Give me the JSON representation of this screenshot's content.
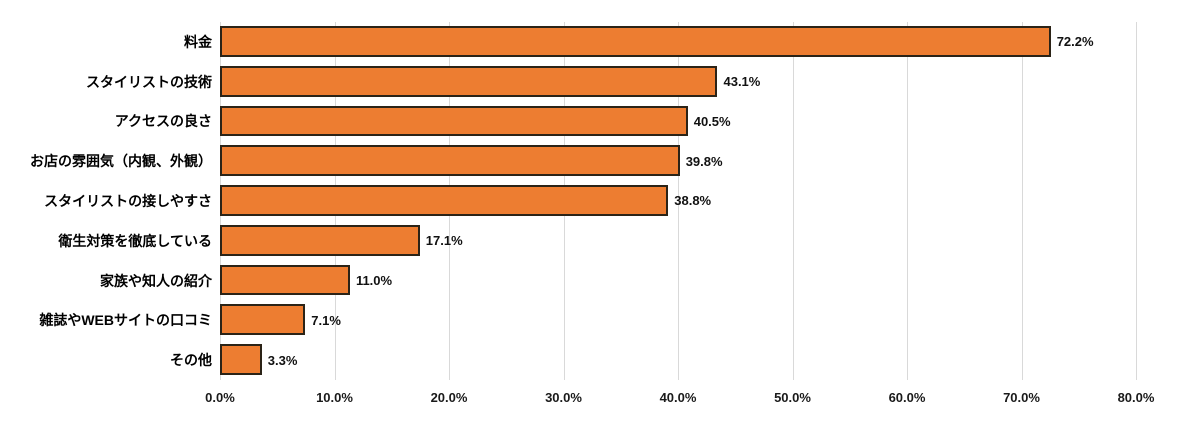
{
  "chart_data": {
    "type": "bar",
    "orientation": "horizontal",
    "title": "",
    "categories": [
      "料金",
      "スタイリストの技術",
      "アクセスの良さ",
      "お店の雰囲気（内観、外観）",
      "スタイリストの接しやすさ",
      "衛生対策を徹底している",
      "家族や知人の紹介",
      "雑誌やWEBサイトの口コミ",
      "その他"
    ],
    "values": [
      72.2,
      43.1,
      40.5,
      39.8,
      38.8,
      17.1,
      11.0,
      7.1,
      3.3
    ],
    "data_labels": [
      "72.2%",
      "43.1%",
      "40.5%",
      "39.8%",
      "38.8%",
      "17.1%",
      "11.0%",
      "7.1%",
      "3.3%"
    ],
    "x_tick_labels": [
      "0.0%",
      "10.0%",
      "20.0%",
      "30.0%",
      "40.0%",
      "50.0%",
      "60.0%",
      "70.0%",
      "80.0%"
    ],
    "x_tick_values": [
      0,
      10,
      20,
      30,
      40,
      50,
      60,
      70,
      80
    ],
    "xlim": [
      0,
      80
    ],
    "grid": true,
    "legend": false,
    "colors": {
      "bar_fill": "#ED7D31",
      "bar_border": "#2B2317",
      "gridline": "#D9D9D9",
      "label_text": "#000000",
      "tick_text": "#1A1A1A"
    }
  }
}
